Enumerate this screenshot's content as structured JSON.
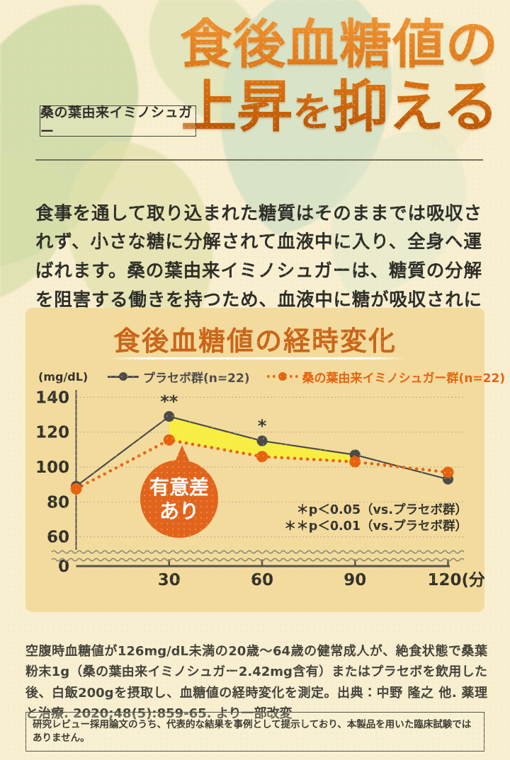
{
  "header": {
    "tag_label": "桑の葉由来イミノシュガー",
    "title_line1": "食後血糖値の",
    "title_line2_a": "上昇",
    "title_line2_b": "を",
    "title_line2_c": "抑える",
    "accent_gradient_top": "#ef9332",
    "accent_gradient_bottom": "#b85304"
  },
  "intro": {
    "text": "食事を通して取り込まれた糖質はそのままでは吸収されず、小さな糖に分解されて血液中に入り、全身へ運ばれます。桑の葉由来イミノシュガーは、糖質の分解を阻害する働きを持つため、血液中に糖が吸収されにくくなり、血糖値の上昇が緩やかになります。"
  },
  "chart_data": {
    "type": "line",
    "title": "食後血糖値の経時変化",
    "ylabel": "(mg/dL)",
    "xlabel": "(分)",
    "x": [
      0,
      30,
      60,
      90,
      120
    ],
    "x_tick_values": [
      30,
      60,
      90,
      120
    ],
    "x_tick_labels": [
      "30",
      "60",
      "90",
      "120(分)"
    ],
    "y_ticks": [
      140,
      120,
      100,
      80,
      60
    ],
    "origin_label": "0",
    "y_axis_break": true,
    "ylim_shown": [
      60,
      140
    ],
    "grid": "dotted-horizontal",
    "legend_position": "top",
    "series": [
      {
        "name": "プラセボ群(n=22)",
        "color": "#4c4b49",
        "style": "solid",
        "values": [
          89,
          129,
          115,
          107,
          93
        ]
      },
      {
        "name": "桑の葉由来イミノシュガー群(n=22)",
        "color": "#e7620e",
        "style": "dotted",
        "values": [
          87.5,
          115.5,
          106,
          103,
          97
        ]
      }
    ],
    "significance_marks": [
      {
        "x": 30,
        "label": "**"
      },
      {
        "x": 60,
        "label": "*"
      }
    ],
    "notes": [
      "＊p＜0.05（vs.プラセボ群）",
      "＊＊p＜0.01（vs.プラセボ群）"
    ],
    "highlight_fill": {
      "color": "#f8ef3d",
      "between_x": [
        30,
        90
      ],
      "between_series": [
        0,
        1
      ]
    },
    "bubble": {
      "line1": "有意差",
      "line2": "あり",
      "color": "#e2641c",
      "text_color": "#ffffff"
    },
    "panel_bg": "#f2db9d",
    "axis_color": "#55534a",
    "grid_color": "#b0a68b"
  },
  "footer": {
    "source_text": "空腹時血糖値が126mg/dL未満の20歳〜64歳の健常成人が、絶食状態で桑葉粉末1g（桑の葉由来イミノシュガー2.42mg含有）またはプラセボを飲用した後、白飯200gを摂取し、血糖値の経時変化を測定。出典：中野 隆之 他. 薬理と治療. 2020;48(5):859-65. より一部改変",
    "boxed_note": "研究レビュー採用論文のうち、代表的な結果を事例として提示しており、本製品を用いた臨床試験ではありません。"
  }
}
